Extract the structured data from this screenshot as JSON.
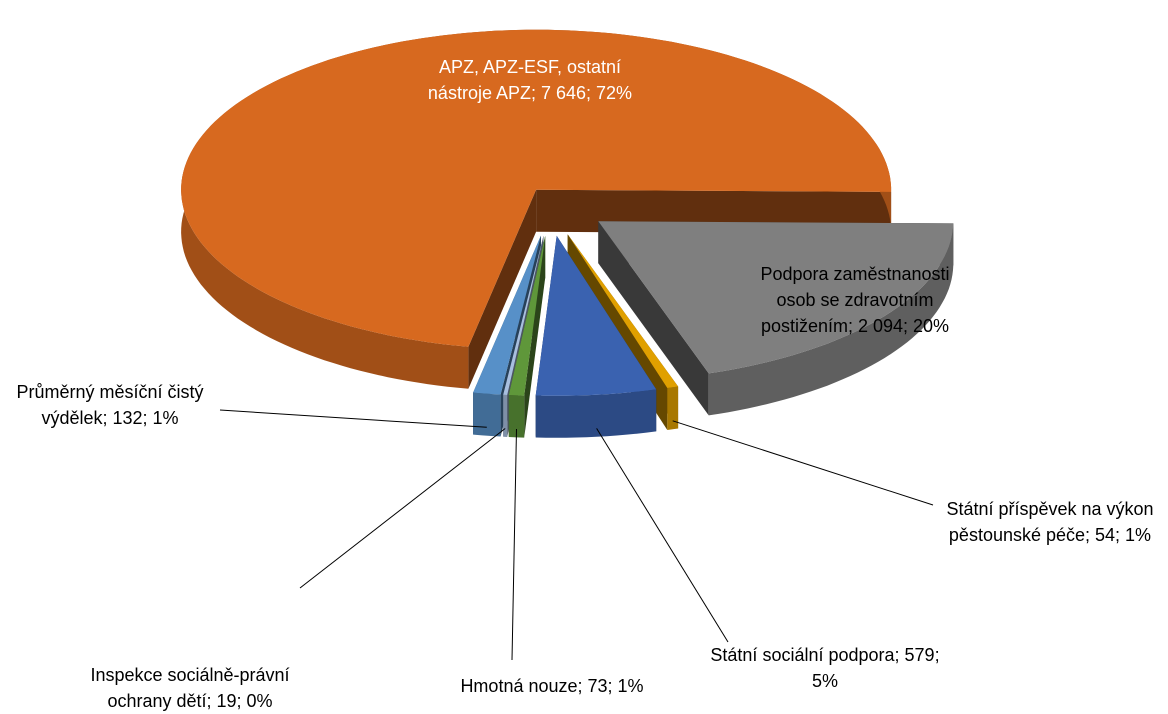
{
  "chart_data": {
    "type": "pie",
    "values": [
      7646,
      2094,
      54,
      579,
      73,
      19,
      132
    ],
    "value_labels": [
      "APZ, APZ-ESF, ostatní nástroje APZ; 7 646; 72%",
      "Podpora zaměstnanosti osob se zdravotním postižením; 2 094; 20%",
      "Státní příspěvek na výkon pěstounské péče; 54; 1%",
      "Státní sociální podpora; 579; 5%",
      "Hmotná nouze; 73; 1%",
      "Inspekce sociálně-právní ochrany dětí; 19; 0%",
      "Průměrný měsíční čistý výdělek; 132; 1%"
    ],
    "colors": [
      "#d7691f",
      "#7f7f7f",
      "#e0a000",
      "#3a62b0",
      "#5f973a",
      "#a8bfdf",
      "#5790c8"
    ]
  }
}
